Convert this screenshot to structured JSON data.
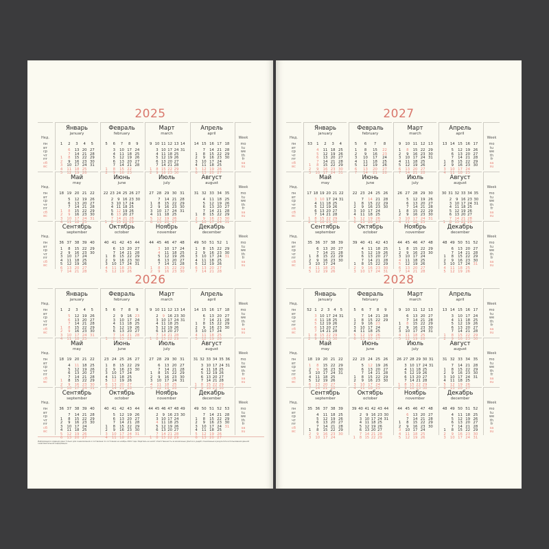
{
  "colors": {
    "accent": "#d9776c",
    "weekend": "#e8867c",
    "page": "#fbfaf1",
    "background": "#3b3b3d"
  },
  "labels": {
    "week_ru": "Нед.",
    "week_en": "Week",
    "days_ru": [
      "пн",
      "вт",
      "ср",
      "чт",
      "пт",
      "сб",
      "вс"
    ],
    "days_en": [
      "mo",
      "tu",
      "we",
      "th",
      "fr",
      "sa",
      "su"
    ]
  },
  "months": [
    {
      "ru": "Январь",
      "en": "january"
    },
    {
      "ru": "Февраль",
      "en": "february"
    },
    {
      "ru": "Март",
      "en": "march"
    },
    {
      "ru": "Апрель",
      "en": "april"
    },
    {
      "ru": "Май",
      "en": "may"
    },
    {
      "ru": "Июнь",
      "en": "june"
    },
    {
      "ru": "Июль",
      "en": "july"
    },
    {
      "ru": "Август",
      "en": "august"
    },
    {
      "ru": "Сентябрь",
      "en": "september"
    },
    {
      "ru": "Октябрь",
      "en": "october"
    },
    {
      "ru": "Ноябрь",
      "en": "november"
    },
    {
      "ru": "Декабрь",
      "en": "december"
    }
  ],
  "pages": [
    {
      "years": [
        {
          "year": "2025",
          "holidays": {
            "1": [
              1,
              2,
              3,
              6,
              7,
              8
            ],
            "5": [
              1,
              2,
              8,
              9
            ],
            "6": [
              12,
              13
            ],
            "11": [
              3,
              4
            ],
            "12": [
              31
            ]
          }
        },
        {
          "year": "2026",
          "holidays": {
            "1": [
              1,
              2,
              5,
              6,
              7,
              8,
              9
            ],
            "2": [
              23
            ],
            "3": [
              9
            ],
            "5": [
              1,
              11
            ],
            "6": [
              12
            ],
            "11": [
              4
            ],
            "12": [
              31
            ]
          }
        }
      ],
      "footnote": "Информация в издании дана только для ознакомления и составлена по состоянию на ноябрь 2024 года. Издатель не несёт ответственность за возможные убытки и ущерб, понесённые в результате использования данной ознакомительной информации."
    },
    {
      "years": [
        {
          "year": "2027",
          "holidays": {
            "1": [
              1,
              4,
              5,
              6,
              7,
              8
            ],
            "2": [
              22,
              23
            ],
            "3": [
              8
            ],
            "5": [
              3,
              10
            ],
            "6": [
              14
            ],
            "11": [
              4,
              5
            ],
            "12": [
              31
            ]
          }
        },
        {
          "year": "2028",
          "holidays": {
            "1": [
              3,
              4,
              5,
              6,
              7
            ],
            "2": [
              23
            ],
            "3": [
              8
            ],
            "5": [
              1,
              8,
              9
            ],
            "6": [
              12
            ],
            "11": [
              3,
              6
            ]
          }
        }
      ]
    }
  ]
}
